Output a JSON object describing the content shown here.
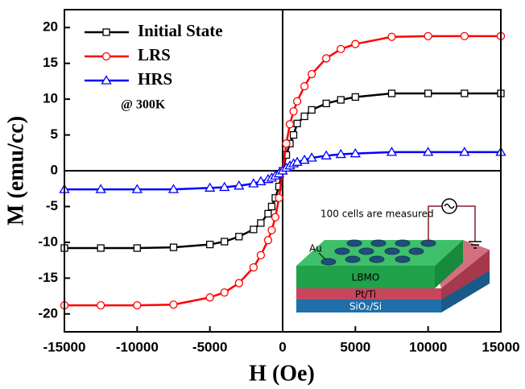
{
  "chart_data": {
    "type": "line",
    "xlabel": "H (Oe)",
    "ylabel": "M (emu/cc)",
    "x": [
      -15000,
      -12500,
      -10000,
      -7500,
      -5000,
      -4000,
      -3000,
      -2000,
      -1500,
      -1000,
      -750,
      -500,
      -250,
      0,
      250,
      500,
      750,
      1000,
      1500,
      2000,
      3000,
      4000,
      5000,
      7500,
      10000,
      12500,
      15000
    ],
    "series": [
      {
        "name": "Initial State",
        "color": "#000000",
        "marker": "square",
        "values": [
          -10.8,
          -10.8,
          -10.8,
          -10.7,
          -10.3,
          -9.9,
          -9.2,
          -8.2,
          -7.3,
          -6.0,
          -5.0,
          -3.8,
          -2.2,
          0,
          2.2,
          3.8,
          5.0,
          6.6,
          7.6,
          8.5,
          9.4,
          9.9,
          10.3,
          10.8,
          10.8,
          10.8,
          10.8
        ]
      },
      {
        "name": "LRS",
        "color": "#ff0000",
        "marker": "circle",
        "values": [
          -18.8,
          -18.8,
          -18.8,
          -18.7,
          -17.7,
          -17.0,
          -15.7,
          -13.5,
          -11.8,
          -9.7,
          -8.3,
          -6.5,
          -3.8,
          0,
          3.8,
          6.5,
          8.3,
          9.7,
          11.8,
          13.5,
          15.7,
          17.0,
          17.7,
          18.7,
          18.8,
          18.8,
          18.8
        ]
      },
      {
        "name": "HRS",
        "color": "#0000ff",
        "marker": "triangle",
        "values": [
          -2.6,
          -2.6,
          -2.6,
          -2.6,
          -2.4,
          -2.3,
          -2.1,
          -1.8,
          -1.5,
          -1.2,
          -1.0,
          -0.7,
          -0.4,
          0,
          0.4,
          0.7,
          1.0,
          1.2,
          1.5,
          1.8,
          2.1,
          2.3,
          2.4,
          2.6,
          2.6,
          2.6,
          2.6
        ]
      }
    ],
    "xlim": [
      -15000,
      15000
    ],
    "xticks": [
      -15000,
      -10000,
      -5000,
      0,
      5000,
      10000,
      15000
    ],
    "ylim": [
      -22.5,
      22.5
    ],
    "yticks": [
      -20,
      -15,
      -10,
      -5,
      0,
      5,
      10,
      15,
      20
    ],
    "legend": "upper left",
    "annotation": "@ 300K",
    "inset": {
      "caption": "100 cells  are measured",
      "electrode": "Au",
      "layers": [
        "LBMO",
        "Pt/Ti",
        "SiO₂/Si"
      ]
    }
  }
}
